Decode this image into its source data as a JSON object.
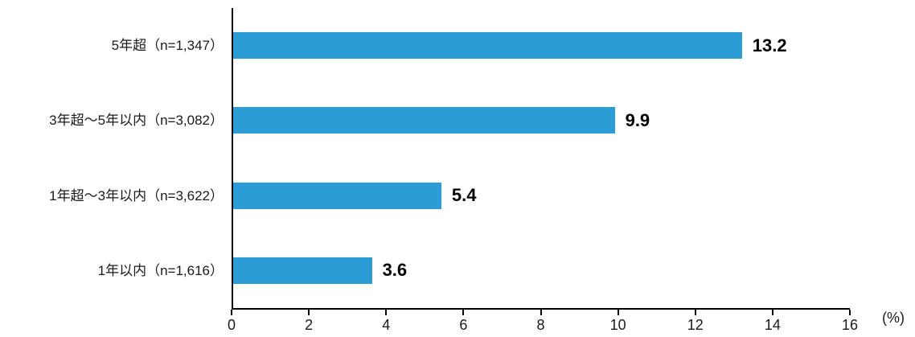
{
  "chart_data": {
    "type": "bar",
    "orientation": "horizontal",
    "title": "",
    "xlabel": "",
    "ylabel": "",
    "unit_label": "(%)",
    "categories": [
      "5年超（n=1,347）",
      "3年超～5年以内（n=3,082）",
      "1年超～3年以内（n=3,622）",
      "1年以内（n=1,616）"
    ],
    "values": [
      13.2,
      9.9,
      5.4,
      3.6
    ],
    "value_labels": [
      "13.2",
      "9.9",
      "5.4",
      "3.6"
    ],
    "xlim": [
      0,
      16
    ],
    "x_ticks": [
      "0",
      "2",
      "4",
      "6",
      "8",
      "10",
      "12",
      "14",
      "16"
    ],
    "grid": false,
    "legend_position": "none",
    "bar_color": "#2B9CD5",
    "axis_color": "#000000",
    "text_color": "#1a1a1a"
  }
}
